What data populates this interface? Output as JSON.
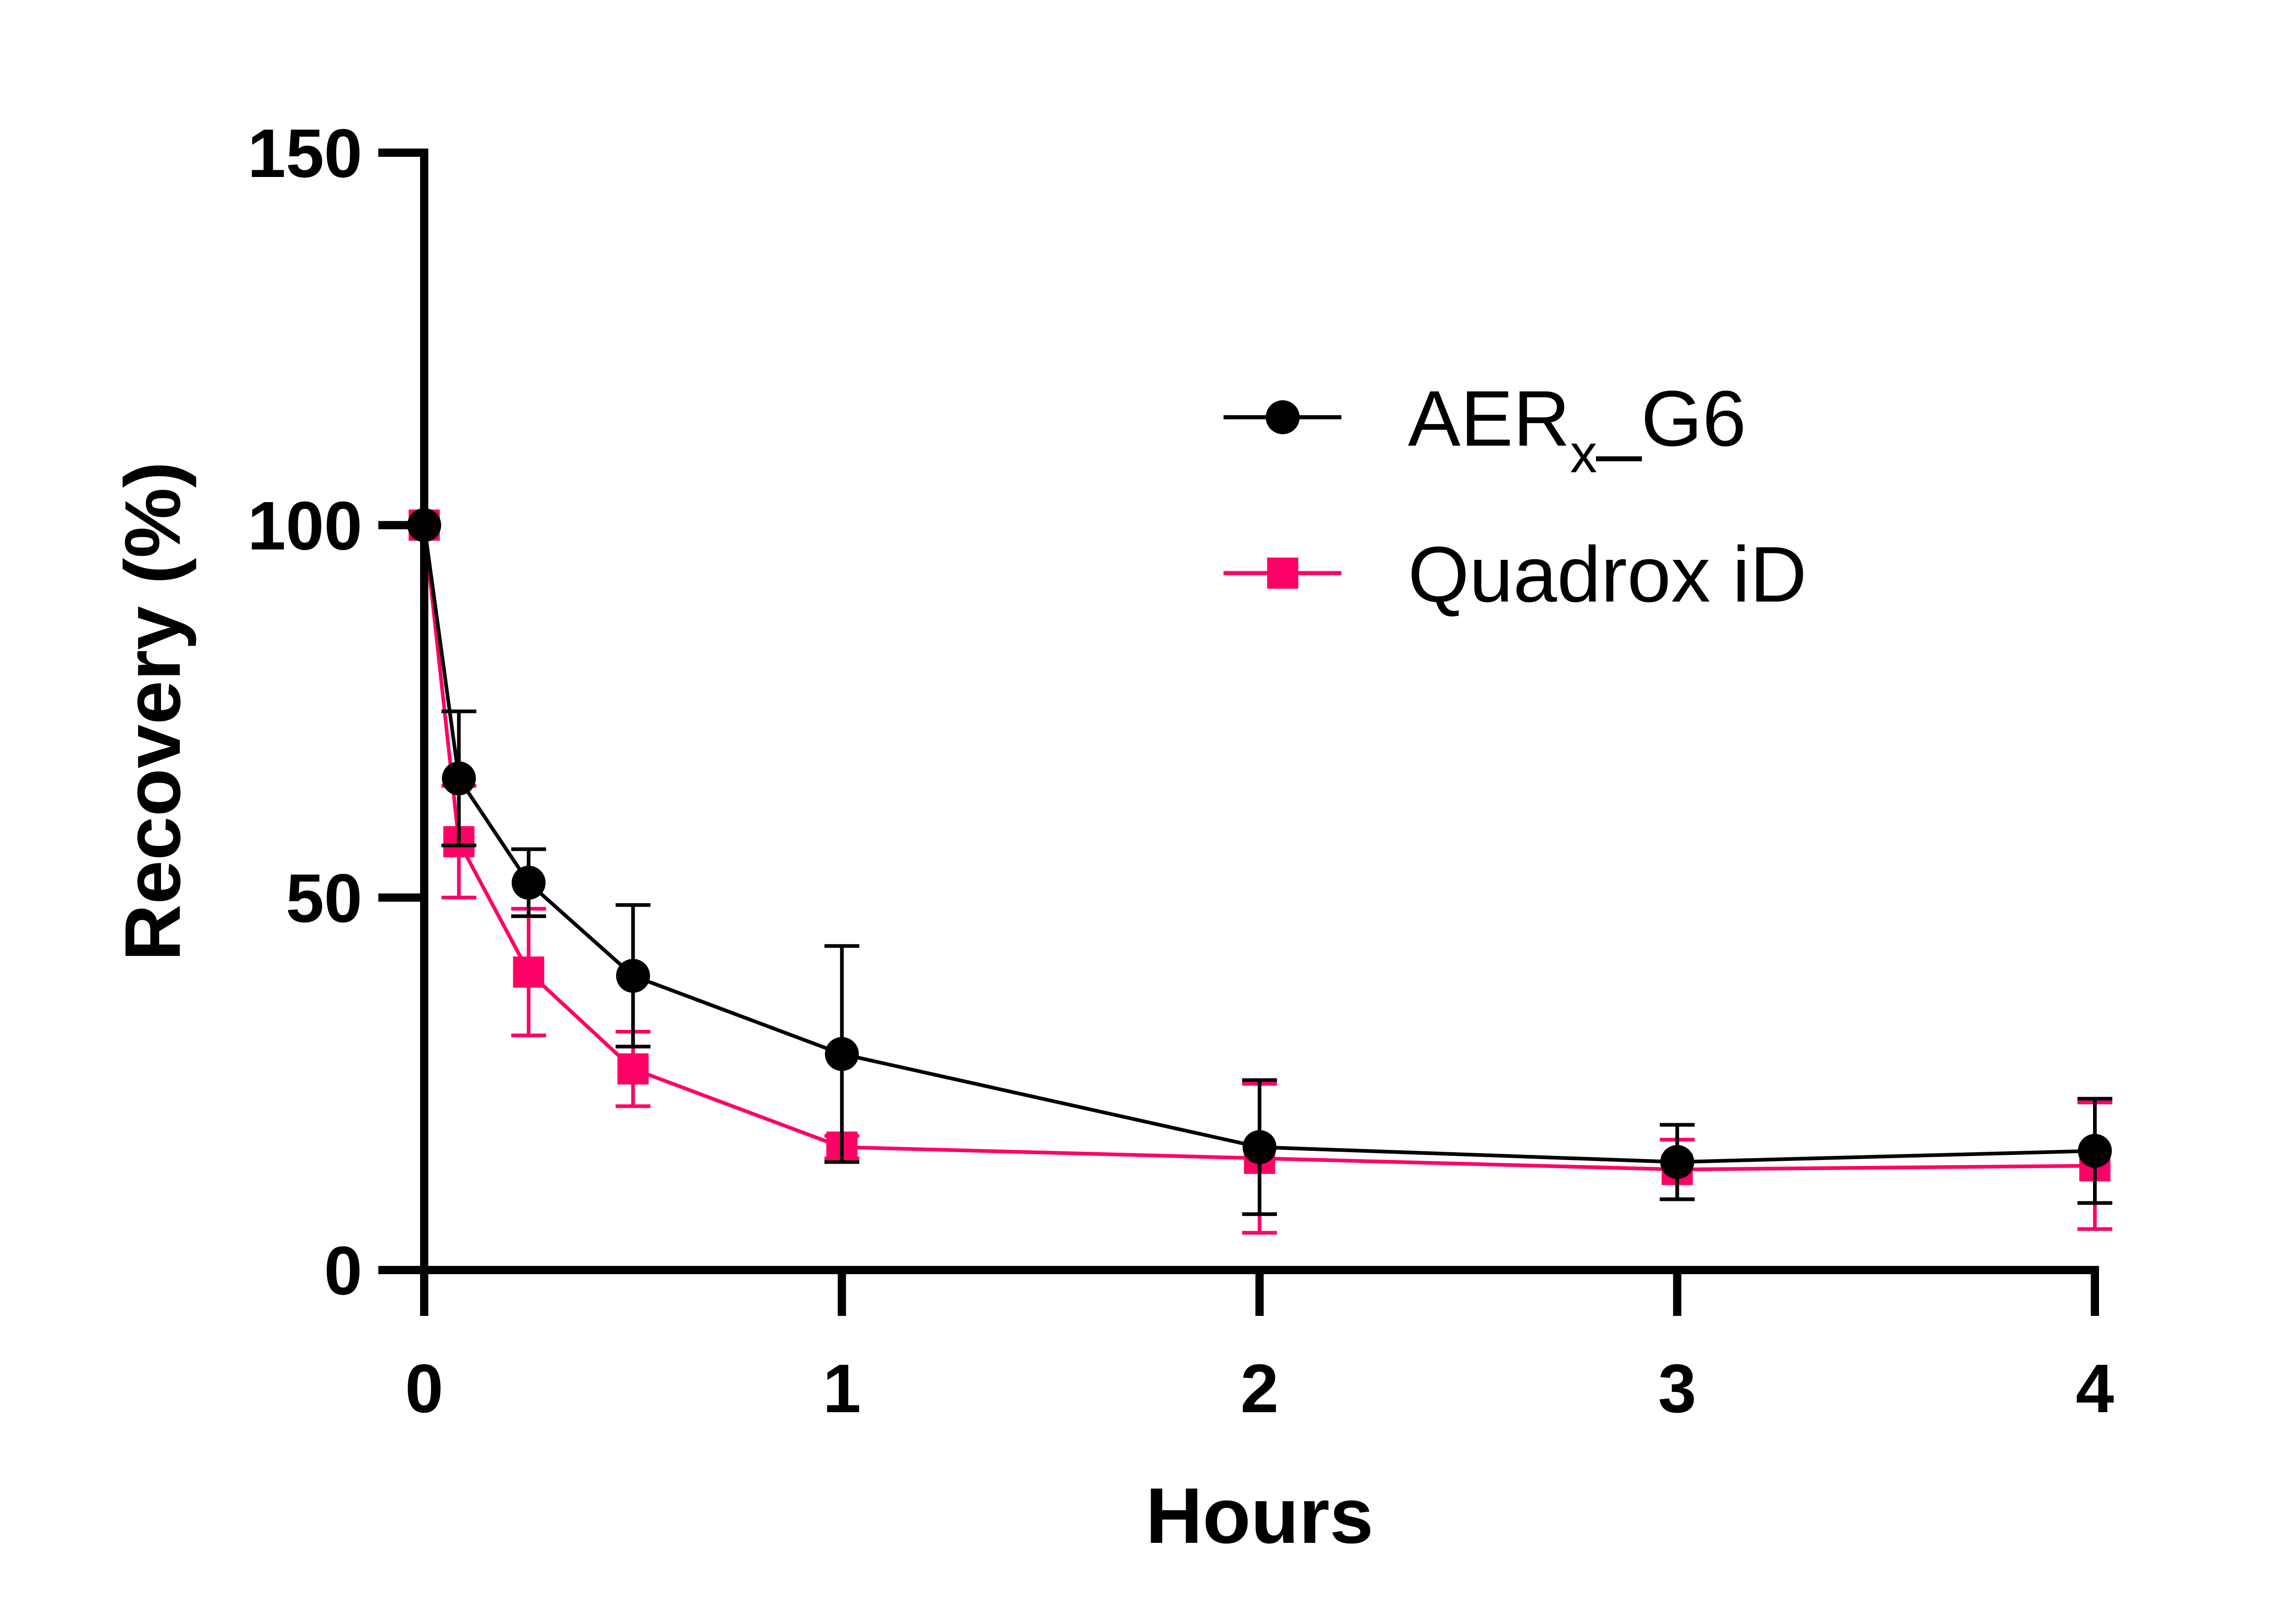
{
  "chart_data": {
    "type": "line",
    "xlabel": "Hours",
    "ylabel": "Recovery (%)",
    "xlim": [
      0,
      4
    ],
    "ylim": [
      0,
      150
    ],
    "xticks": [
      0,
      1,
      2,
      3,
      4
    ],
    "yticks": [
      0,
      50,
      100,
      150
    ],
    "grid": false,
    "legend_position": "top-right",
    "series": [
      {
        "name_main": "AER",
        "name_sub": "x",
        "name_tail": "_G6",
        "color": "#000000",
        "marker": "circle",
        "x": [
          0,
          0.083,
          0.25,
          0.5,
          1,
          2,
          3,
          4
        ],
        "y": [
          100,
          66,
          52,
          39.5,
          29,
          16.5,
          14.5,
          16
        ],
        "err": [
          0,
          9,
          4.5,
          9.5,
          14.5,
          9,
          5,
          7
        ]
      },
      {
        "name": "Quadrox iD",
        "color": "#ff0066",
        "marker": "square",
        "x": [
          0,
          0.083,
          0.25,
          0.5,
          1,
          2,
          3,
          4
        ],
        "y": [
          100,
          57.5,
          40,
          27,
          16.5,
          15,
          13.5,
          14
        ],
        "err": [
          0,
          7.5,
          8.5,
          5,
          1.5,
          10,
          4,
          8.5
        ]
      }
    ]
  }
}
